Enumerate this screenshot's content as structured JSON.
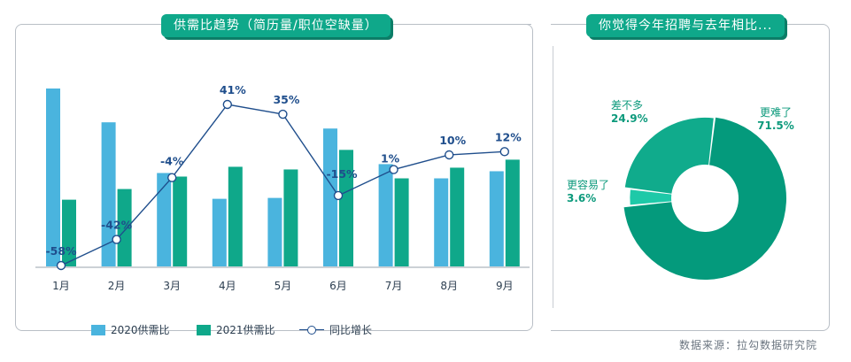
{
  "left_panel": {
    "title": "供需比趋势（简历量/职位空缺量）"
  },
  "right_panel": {
    "title": "你觉得今年招聘与去年相比..."
  },
  "source": "数据来源：拉勾数据研究院",
  "colors": {
    "bar_2020": "#4ab4de",
    "bar_2021": "#0fa88a",
    "line": "#1f4e8c",
    "pie_harder": "#049a7c",
    "pie_same": "#10ab8c",
    "pie_easier": "#1ec9a8",
    "label_green": "#0c9a7c"
  },
  "chart_data": [
    {
      "type": "bar",
      "categories": [
        "1月",
        "2月",
        "3月",
        "4月",
        "5月",
        "6月",
        "7月",
        "8月",
        "9月"
      ],
      "series": [
        {
          "name": "2020供需比",
          "values": [
            2.0,
            1.62,
            1.05,
            0.76,
            0.77,
            1.55,
            1.15,
            0.99,
            1.07
          ]
        },
        {
          "name": "2021供需比",
          "values": [
            0.75,
            0.87,
            1.01,
            1.12,
            1.09,
            1.31,
            0.99,
            1.11,
            1.2
          ]
        }
      ],
      "line_series": {
        "name": "同比增长",
        "values": [
          -58,
          -42,
          -4,
          41,
          35,
          -15,
          1,
          10,
          12
        ],
        "labels": [
          "-58%",
          "-42%",
          "-4%",
          "41%",
          "35%",
          "-15%",
          "1%",
          "10%",
          "12%"
        ]
      },
      "legend": [
        "2020供需比",
        "2021供需比",
        "同比增长"
      ],
      "legend_position": "bottom",
      "grid": false
    },
    {
      "type": "pie",
      "donut": true,
      "slices": [
        {
          "label": "更难了",
          "value": 71.5,
          "value_label": "71.5%"
        },
        {
          "label": "更容易了",
          "value": 3.6,
          "value_label": "3.6%"
        },
        {
          "label": "差不多",
          "value": 24.9,
          "value_label": "24.9%"
        }
      ]
    }
  ]
}
